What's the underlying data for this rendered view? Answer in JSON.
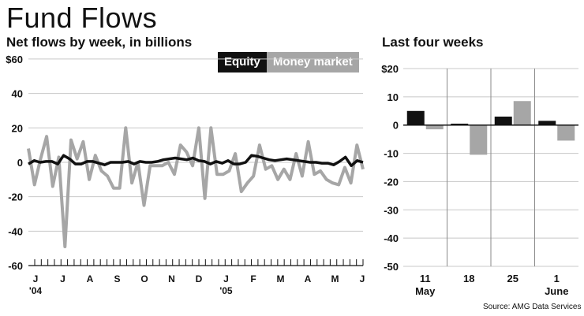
{
  "title": "Fund Flows",
  "colors": {
    "equity": "#111111",
    "money_market": "#a6a6a6",
    "grid": "#c8c8c8"
  },
  "chart_data": [
    {
      "type": "line",
      "subtitle": "Net flows by week, in billions",
      "ylim": [
        -60,
        65
      ],
      "yticks": [
        -60,
        -40,
        -20,
        0,
        20,
        40,
        60
      ],
      "ytick_labels": [
        "-60",
        "-40",
        "-20",
        "0",
        "20",
        "40",
        "$60"
      ],
      "grid": true,
      "legend_position": "top-right",
      "xtick_labels": [
        "J",
        "J",
        "A",
        "S",
        "O",
        "N",
        "D",
        "J",
        "F",
        "M",
        "A",
        "M",
        "J"
      ],
      "xyear_labels": [
        {
          "under": 0,
          "text": "'04"
        },
        {
          "under": 7,
          "text": "'05"
        }
      ],
      "series": [
        {
          "name": "Equity",
          "values": [
            -1,
            1,
            0,
            0.5,
            0.5,
            -1,
            4,
            2,
            -1,
            -1,
            0.5,
            0.5,
            -0.5,
            -1.5,
            0,
            0,
            0,
            0.5,
            -1,
            0.5,
            0,
            0,
            0.5,
            1.5,
            2,
            2.5,
            2,
            1.5,
            2.5,
            1,
            0.5,
            -1,
            0.5,
            -0.5,
            1,
            -1,
            -1,
            0,
            4,
            3.5,
            2.5,
            1.5,
            1,
            1.5,
            2,
            1.5,
            1,
            0.5,
            0,
            0,
            -0.5,
            -0.5,
            -1.5,
            0.5,
            3,
            -2,
            1,
            0
          ]
        },
        {
          "name": "Money market",
          "values": [
            8,
            -13,
            2,
            15,
            -14,
            3,
            -49,
            13,
            2,
            12,
            -10,
            4,
            -5,
            -8,
            -15,
            -15,
            20,
            -12,
            0,
            -25,
            -2,
            -2,
            -2,
            0,
            -7,
            10,
            6,
            -2,
            20,
            -21,
            20,
            -7,
            -7,
            -5,
            5,
            -17,
            -12,
            -8,
            10,
            -4,
            -2,
            -10,
            -4,
            -10,
            5,
            -8,
            12,
            -7,
            -5,
            -10,
            -12,
            -13,
            -3,
            -12,
            10,
            -4
          ]
        }
      ]
    },
    {
      "type": "bar",
      "subtitle": "Last four weeks",
      "categories": [
        "11",
        "18",
        "25",
        "1"
      ],
      "month_labels": [
        {
          "under": 0,
          "text": "May"
        },
        {
          "under": 3,
          "text": "June"
        }
      ],
      "ylim": [
        -50,
        20
      ],
      "yticks": [
        -50,
        -40,
        -30,
        -20,
        -10,
        0,
        10,
        20
      ],
      "ytick_labels": [
        "-50",
        "-40",
        "-30",
        "-20",
        "-10",
        "0",
        "10",
        "$20"
      ],
      "series": [
        {
          "name": "Equity",
          "values": [
            5,
            0.5,
            3,
            1.5
          ]
        },
        {
          "name": "Money market",
          "values": [
            -1.5,
            -10.5,
            8.5,
            -5.5
          ]
        }
      ]
    }
  ],
  "legend": {
    "equity": "Equity",
    "money_market": "Money market"
  },
  "source": "Source: AMG Data Services"
}
